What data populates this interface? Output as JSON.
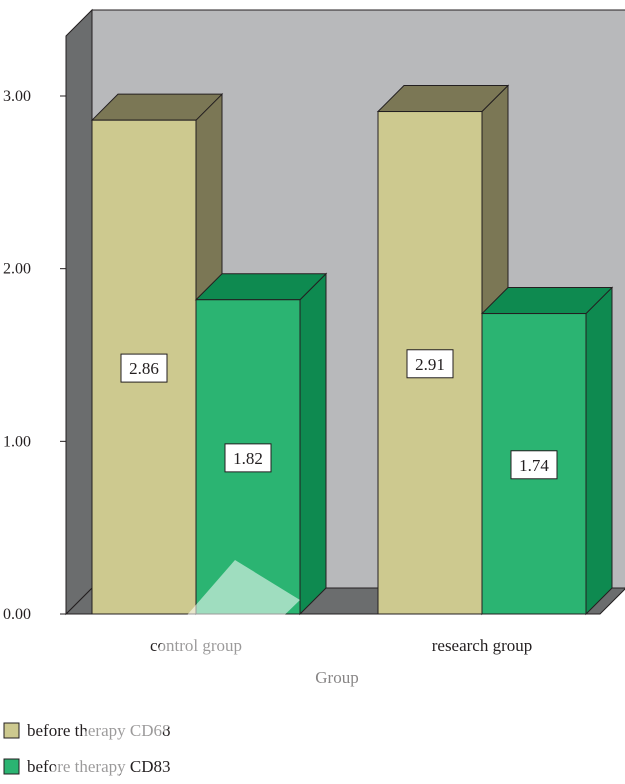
{
  "chart_data": {
    "type": "bar",
    "style": "3d-clustered-column",
    "categories": [
      "control group",
      "research group"
    ],
    "series": [
      {
        "name": "before therapy CD68",
        "values": [
          2.86,
          2.91
        ],
        "color": "#cdc98f",
        "side_color": "#7b7755",
        "label_format": "2"
      },
      {
        "name": "before therapy CD83",
        "values": [
          1.82,
          1.74
        ],
        "color": "#2bb472",
        "side_color": "#0e8a50",
        "label_format": "2"
      }
    ],
    "xlabel": "Group",
    "ylabel": "",
    "ylim": [
      0,
      3.0
    ],
    "yticks": [
      0.0,
      1.0,
      2.0,
      3.0
    ],
    "ytick_labels": [
      "0.00",
      "1.00",
      "2.00",
      "3.00"
    ],
    "data_labels": [
      "2.86",
      "1.82",
      "2.91",
      "1.74"
    ],
    "grid": false,
    "legend_position": "bottom-left",
    "colors": {
      "back_wall": "#b8b9bb",
      "side_wall": "#6b6d6e",
      "floor": "#6b6d6e",
      "outline": "#231f20"
    }
  }
}
